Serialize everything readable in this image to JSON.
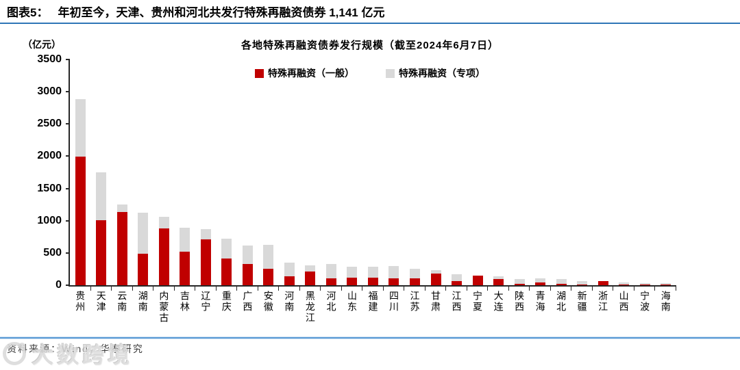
{
  "figure": {
    "label": "图表5：",
    "title": "年初至今，天津、贵州和河北共发行特殊再融资债券 1,141 亿元"
  },
  "chart_data": {
    "type": "bar",
    "stacked": true,
    "title": "各地特殊再融资债券发行规模（截至2024年6月7日）",
    "unit_label": "（亿元）",
    "ylim": [
      0,
      3500
    ],
    "yticks": [
      0,
      500,
      1000,
      1500,
      2000,
      2500,
      3000,
      3500
    ],
    "grid": false,
    "legend_position": "top-center",
    "categories": [
      "贵州",
      "天津",
      "云南",
      "湖南",
      "内蒙古",
      "吉林",
      "辽宁",
      "重庆",
      "广西",
      "安徽",
      "河南",
      "黑龙江",
      "河北",
      "山东",
      "福建",
      "四川",
      "江苏",
      "甘肃",
      "江西",
      "宁夏",
      "大连",
      "陕西",
      "青海",
      "湖北",
      "新疆",
      "浙江",
      "山西",
      "宁波",
      "海南"
    ],
    "series": [
      {
        "name": "特殊再融资（一般）",
        "color": "#C00000",
        "values": [
          1990,
          1010,
          1140,
          490,
          880,
          520,
          710,
          410,
          330,
          260,
          140,
          215,
          105,
          115,
          115,
          105,
          105,
          185,
          65,
          150,
          100,
          25,
          40,
          25,
          15,
          65,
          10,
          8,
          8
        ]
      },
      {
        "name": "特殊再融资（专项）",
        "color": "#D9D9D9",
        "values": [
          900,
          745,
          115,
          630,
          185,
          375,
          165,
          310,
          290,
          365,
          215,
          90,
          225,
          170,
          175,
          190,
          150,
          45,
          100,
          0,
          40,
          70,
          65,
          70,
          45,
          0,
          30,
          27,
          27
        ]
      }
    ]
  },
  "footer": {
    "source": "资料来源：Wind，华泰研究"
  },
  "watermark": {
    "text": "大数跨境"
  },
  "colors": {
    "accent_red": "#C00000",
    "bar_gray": "#D9D9D9",
    "header_line": "#2E75B6",
    "footer_line": "#5B9BD5",
    "axis": "#262626"
  }
}
